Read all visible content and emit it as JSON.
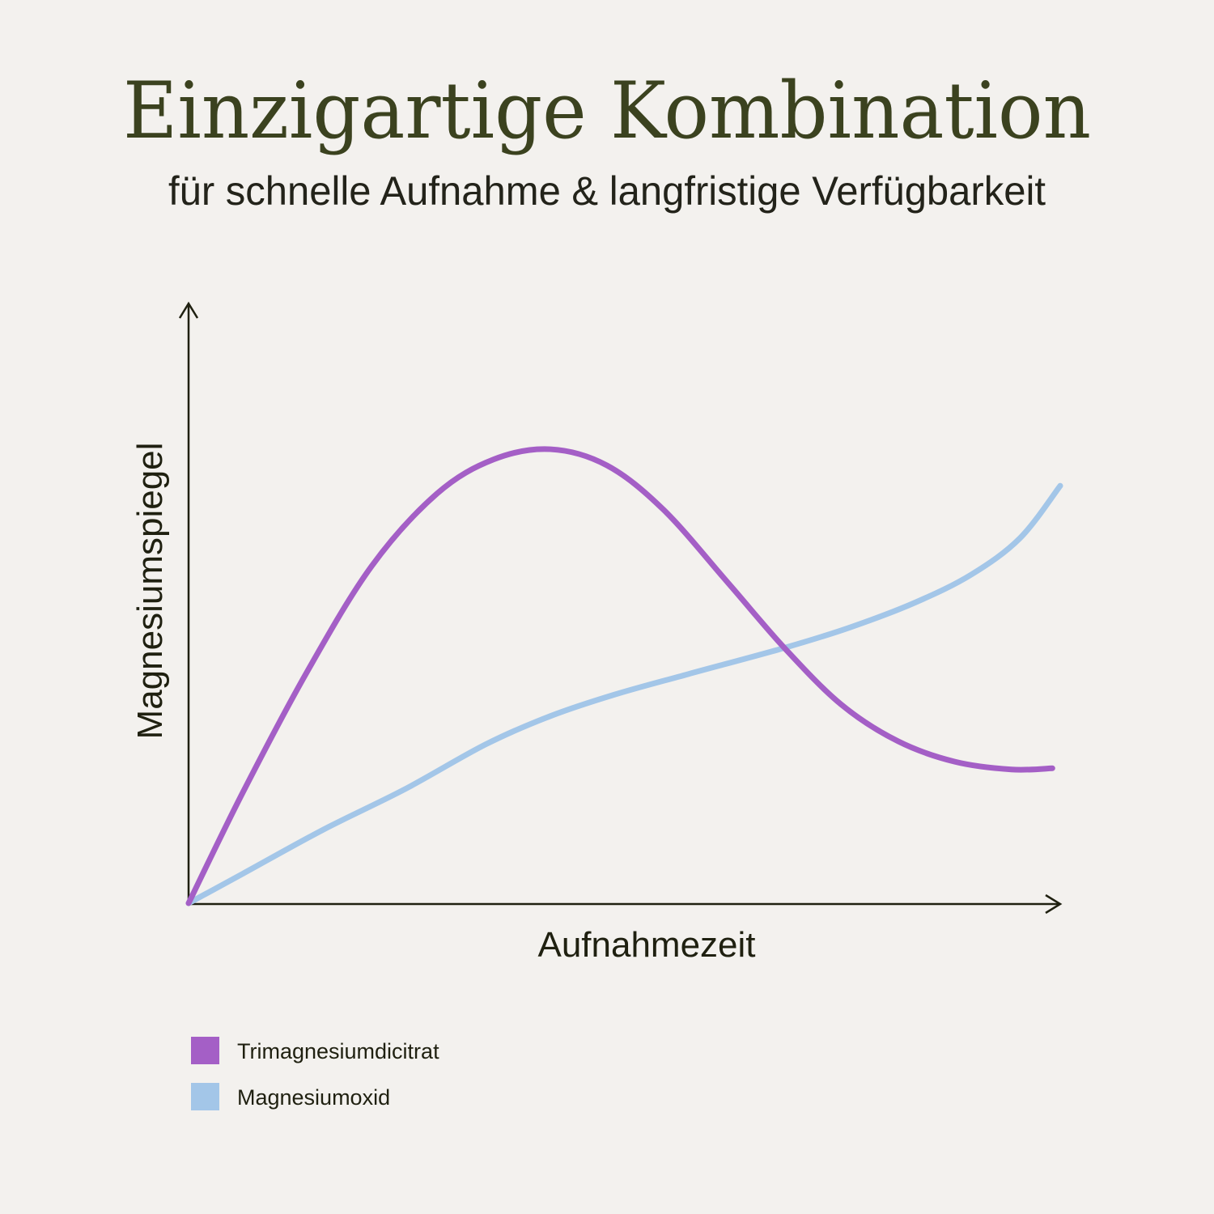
{
  "chart_data": {
    "type": "line",
    "title": "Einzigartige Kombination",
    "subtitle": "für schnelle Aufnahme & langfristige Verfügbarkeit",
    "x_label": "Aufnahmezeit",
    "y_label": "Magnesiumspiegel",
    "xlim": [
      0,
      100
    ],
    "ylim": [
      0,
      100
    ],
    "series": [
      {
        "name": "Trimagnesiumdicitrat",
        "color": "#a45fc6",
        "x": [
          0,
          6.2,
          13.6,
          21.0,
          28.5,
          35.0,
          41.5,
          48.0,
          54.5,
          61.9,
          68.4,
          74.9,
          81.4,
          87.9,
          94.4,
          99.1
        ],
        "values": [
          0,
          18.4,
          38.6,
          56.2,
          68.3,
          74.0,
          75.7,
          73.0,
          65.6,
          53.4,
          42.5,
          33.1,
          27.0,
          23.6,
          22.3,
          22.5
        ]
      },
      {
        "name": "Magnesiumoxid",
        "color": "#a3c6e8",
        "x": [
          0,
          6.2,
          15.5,
          24.8,
          34.1,
          41.5,
          48.9,
          57.3,
          68.4,
          75.9,
          83.3,
          89.8,
          95.4,
          100
        ],
        "values": [
          0,
          4.9,
          12.3,
          19.0,
          26.5,
          31.2,
          34.8,
          38.2,
          42.6,
          46.0,
          50.1,
          54.8,
          60.9,
          69.6
        ]
      }
    ]
  }
}
